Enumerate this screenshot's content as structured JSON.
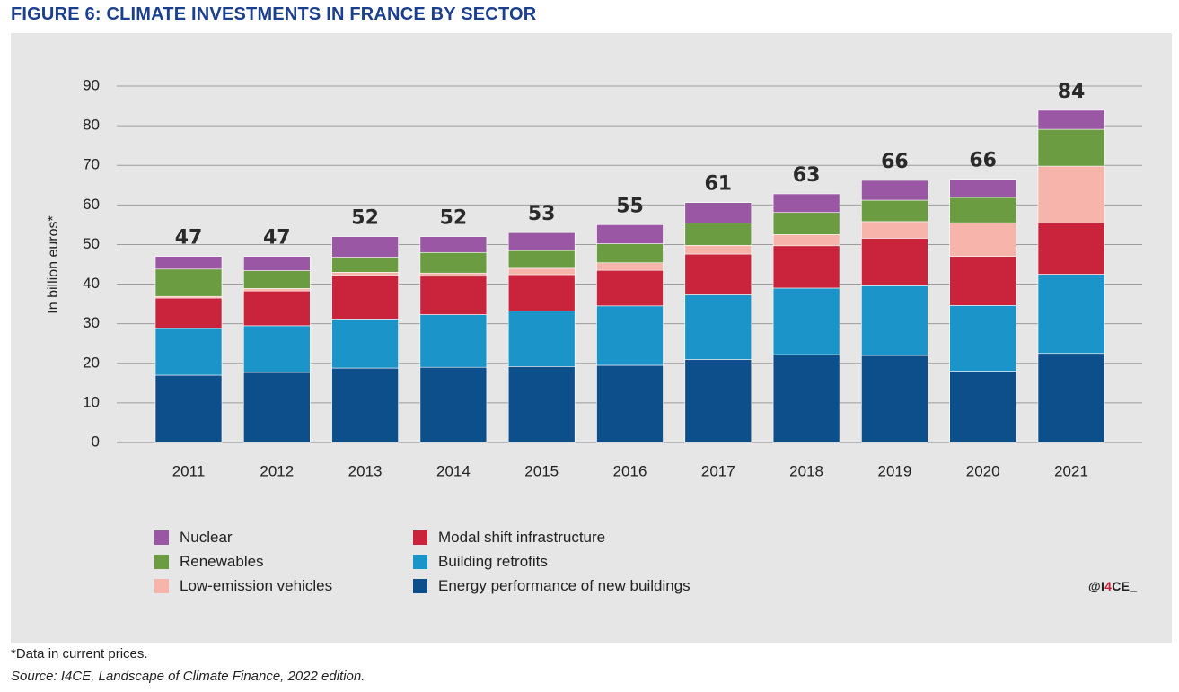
{
  "header": {
    "title": "FIGURE 6: CLIMATE INVESTMENTS IN FRANCE BY SECTOR"
  },
  "chart_data": {
    "type": "bar",
    "stacked": true,
    "ylabel": "In billion euros*",
    "ylim": [
      0,
      90
    ],
    "yticks": [
      0,
      10,
      20,
      30,
      40,
      50,
      60,
      70,
      80,
      90
    ],
    "grid": true,
    "legend_position": "bottom",
    "categories": [
      "2011",
      "2012",
      "2013",
      "2014",
      "2015",
      "2016",
      "2017",
      "2018",
      "2019",
      "2020",
      "2021"
    ],
    "totals": [
      47,
      47,
      52,
      52,
      53,
      55,
      61,
      63,
      66,
      66,
      84
    ],
    "series": [
      {
        "name": "Energy performance of new buildings",
        "color": "#0d4f8a",
        "values": [
          17,
          17.7,
          18.8,
          19,
          19.2,
          19.5,
          21,
          22.2,
          22,
          18,
          22.5
        ]
      },
      {
        "name": "Building retrofits",
        "color": "#1b95c9",
        "values": [
          11.8,
          11.8,
          12.4,
          13.3,
          14,
          15,
          16.3,
          16.8,
          17.6,
          16.6,
          20
        ]
      },
      {
        "name": "Modal shift infrastructure",
        "color": "#c9243b",
        "values": [
          7.7,
          8.8,
          11,
          9.7,
          9.2,
          9,
          10.3,
          10.7,
          12,
          12.4,
          12.9
        ]
      },
      {
        "name": "Low-emission vehicles",
        "color": "#f6b4aa",
        "values": [
          0.4,
          0.6,
          0.8,
          0.8,
          1.6,
          1.9,
          2.2,
          2.8,
          4.2,
          8.5,
          14.4
        ]
      },
      {
        "name": "Renewables",
        "color": "#6b9c42",
        "values": [
          6.9,
          4.5,
          3.8,
          5.2,
          4.5,
          4.8,
          5.6,
          5.6,
          5.4,
          6.4,
          9.3
        ]
      },
      {
        "name": "Nuclear",
        "color": "#9a58a4",
        "values": [
          3.2,
          3.6,
          5.2,
          4,
          4.5,
          4.8,
          5.2,
          4.7,
          5,
          4.6,
          4.8
        ]
      }
    ],
    "legend_order": [
      "Nuclear",
      "Renewables",
      "Low-emission vehicles",
      "Modal shift infrastructure",
      "Building retrofits",
      "Energy performance of new buildings"
    ]
  },
  "credit": {
    "prefix": "@I",
    "highlight": "4",
    "suffix": "CE_"
  },
  "footnote": "*Data in current prices.",
  "source": "Source: I4CE, Landscape of Climate Finance, 2022 edition."
}
